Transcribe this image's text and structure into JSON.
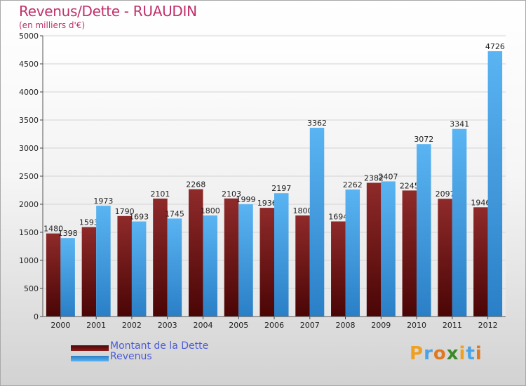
{
  "chart_data": {
    "type": "bar",
    "title": "Revenus/Dette - RUAUDIN",
    "subtitle": "(en milliers d'€)",
    "categories": [
      "2000",
      "2001",
      "2002",
      "2003",
      "2004",
      "2005",
      "2006",
      "2007",
      "2008",
      "2009",
      "2010",
      "2011",
      "2012"
    ],
    "series": [
      {
        "name": "Montant de la Dette",
        "color": "#8b1a1a",
        "values": [
          1480,
          1593,
          1790,
          2101,
          2268,
          2103,
          1936,
          1800,
          1694,
          2382,
          2245,
          2097,
          1946
        ]
      },
      {
        "name": "Revenus",
        "color": "#4aa3e6",
        "values": [
          1398,
          1973,
          1693,
          1745,
          1800,
          1999,
          2197,
          3362,
          2262,
          2407,
          3072,
          3341,
          4726
        ]
      }
    ],
    "ylim": [
      0,
      5000
    ],
    "yticks": [
      0,
      500,
      1000,
      1500,
      2000,
      2500,
      3000,
      3500,
      4000,
      4500,
      5000
    ],
    "xlabel": "",
    "ylabel": "",
    "grid": true,
    "legend_position": "bottom-left"
  },
  "logo": {
    "text": "Proxiti",
    "letters": [
      "P",
      "r",
      "o",
      "x",
      "i",
      "t",
      "i"
    ]
  }
}
